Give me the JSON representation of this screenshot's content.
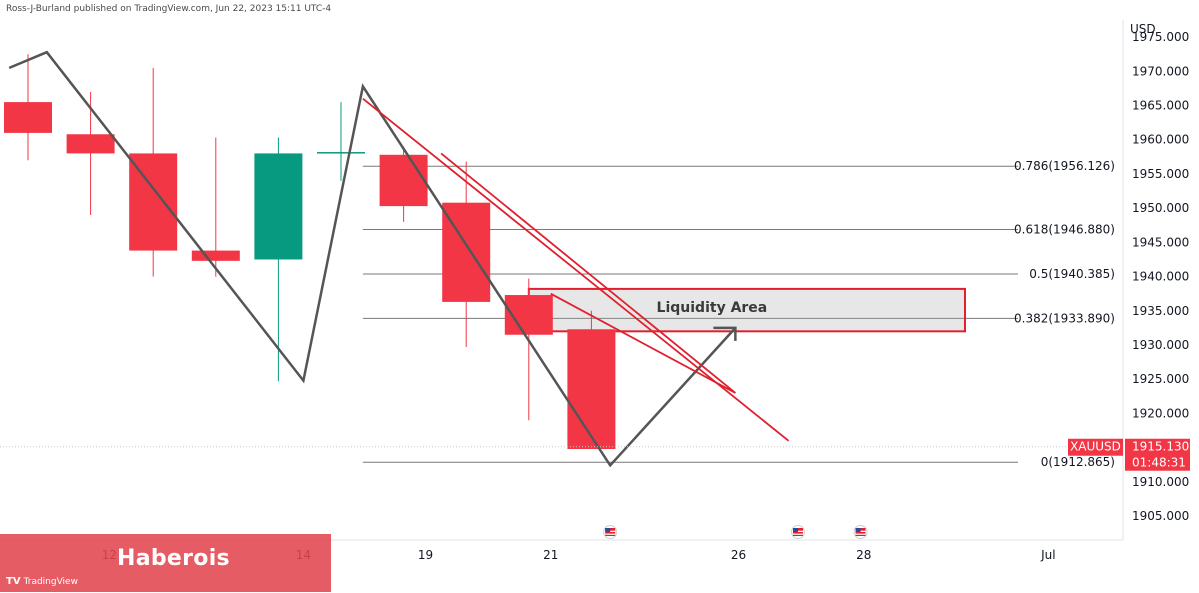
{
  "header": {
    "credit": "Ross-J-Burland published on TradingView.com, Jun 22, 2023 15:11 UTC-4"
  },
  "chart_data": {
    "type": "candlestick",
    "symbol": "XAUUSD",
    "currency_label": "USD",
    "current_price": "1915.130",
    "countdown": "01:48:31",
    "y_axis": {
      "range": [
        1901.5,
        1977.5
      ],
      "ticks": [
        "1905.000",
        "1910.000",
        "1915.000",
        "1920.000",
        "1925.000",
        "1930.000",
        "1935.000",
        "1940.000",
        "1945.000",
        "1950.000",
        "1955.000",
        "1960.000",
        "1965.000",
        "1970.000",
        "1975.000"
      ],
      "tick_values": [
        1905,
        1910,
        1915,
        1920,
        1925,
        1930,
        1935,
        1940,
        1945,
        1950,
        1955,
        1960,
        1965,
        1970,
        1975
      ]
    },
    "x_axis": {
      "labels": [
        {
          "text": "12",
          "i": 1.3
        },
        {
          "text": "14",
          "i": 4.4
        },
        {
          "text": "19",
          "i": 6.35
        },
        {
          "text": "21",
          "i": 8.35
        },
        {
          "text": "26",
          "i": 11.35
        },
        {
          "text": "28",
          "i": 13.35
        },
        {
          "text": "Jul",
          "i": 16.3
        }
      ]
    },
    "candles": [
      {
        "i": 0,
        "open": 1965.5,
        "high": 1972.5,
        "low": 1957.0,
        "close": 1961.0
      },
      {
        "i": 1,
        "open": 1960.8,
        "high": 1967.0,
        "low": 1949.0,
        "close": 1958.0
      },
      {
        "i": 2,
        "open": 1958.0,
        "high": 1970.5,
        "low": 1940.0,
        "close": 1943.8
      },
      {
        "i": 3,
        "open": 1943.8,
        "high": 1960.3,
        "low": 1940.0,
        "close": 1942.3
      },
      {
        "i": 4,
        "open": 1942.5,
        "high": 1960.3,
        "low": 1924.7,
        "close": 1958.0
      },
      {
        "i": 5,
        "open": 1958.0,
        "high": 1965.5,
        "low": 1954.0,
        "close": 1958.2
      },
      {
        "i": 6,
        "open": 1957.8,
        "high": 1958.5,
        "low": 1948.0,
        "close": 1950.3
      },
      {
        "i": 7,
        "open": 1950.8,
        "high": 1956.8,
        "low": 1929.7,
        "close": 1936.3
      },
      {
        "i": 8,
        "open": 1937.3,
        "high": 1939.7,
        "low": 1919.0,
        "close": 1931.5
      },
      {
        "i": 9,
        "open": 1932.3,
        "high": 1935.0,
        "low": 1914.8,
        "close": 1914.8
      }
    ],
    "fibonacci": [
      {
        "label": "0.786(1956.126)",
        "value": 1956.126
      },
      {
        "label": "0.618(1946.880)",
        "value": 1946.88
      },
      {
        "label": "0.5(1940.385)",
        "value": 1940.385
      },
      {
        "label": "0.382(1933.890)",
        "value": 1933.89
      },
      {
        "label": "0(1912.865)",
        "value": 1912.865
      }
    ],
    "zone": {
      "label": "Liquidity Area",
      "top": 1938.2,
      "bottom": 1932.0
    },
    "zigzag": [
      {
        "i": -0.3,
        "v": 1970.5
      },
      {
        "i": 0.3,
        "v": 1972.8
      },
      {
        "i": 4.4,
        "v": 1924.8
      },
      {
        "i": 5.35,
        "v": 1967.8
      },
      {
        "i": 9.3,
        "v": 1912.4
      },
      {
        "i": 11.3,
        "v": 1932.5
      }
    ],
    "trendlines": [
      {
        "from": {
          "i": 5.35,
          "v": 1966.0
        },
        "to": {
          "i": 12.15,
          "v": 1916.0
        }
      },
      {
        "from": {
          "i": 6.6,
          "v": 1958.0
        },
        "to": {
          "i": 11.3,
          "v": 1923.0
        }
      },
      {
        "from": {
          "i": 8.35,
          "v": 1937.5
        },
        "to": {
          "i": 11.3,
          "v": 1923.0
        }
      }
    ],
    "event_markers": [
      {
        "i": 9.3
      },
      {
        "i": 12.3
      },
      {
        "i": 13.3
      }
    ],
    "colors": {
      "bear": "#f23645",
      "bull": "#089981",
      "line": "#555555",
      "trend": "#e0202e",
      "fib": "#787878",
      "price_tag": "#f23645"
    }
  },
  "watermark": {
    "text": "Haberois",
    "tv_logo": "TradingView",
    "tv_icon": "TV"
  }
}
